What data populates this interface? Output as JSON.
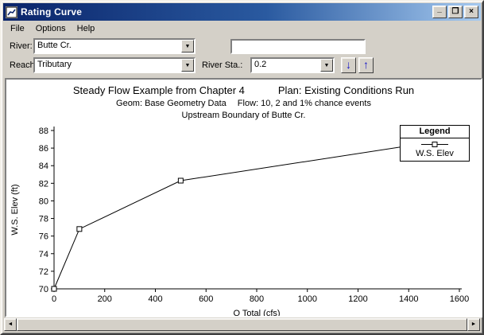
{
  "window": {
    "title": "Rating Curve",
    "minimize_glyph": "_",
    "maximize_glyph": "❐",
    "close_glyph": "×"
  },
  "menu": {
    "items": [
      {
        "label": "File"
      },
      {
        "label": "Options"
      },
      {
        "label": "Help"
      }
    ]
  },
  "controls": {
    "river_label": "River:",
    "river_value": "Butte Cr.",
    "reach_label": "Reach:",
    "reach_value": "Tributary",
    "sta_label": "River Sta.:",
    "sta_value": "0.2",
    "info_value": "",
    "down_arrow_glyph": "↓",
    "up_arrow_glyph": "↑",
    "dropdown_glyph": "▼"
  },
  "chart_data": {
    "type": "line",
    "title": "Steady Flow Example from Chapter 4",
    "plan": "Plan: Existing Conditions Run",
    "geom": "Geom: Base Geometry Data",
    "flow": "Flow: 10, 2 and 1% chance events",
    "boundary": "Upstream Boundary of Butte Cr.",
    "xlabel": "Q Total  (cfs)",
    "ylabel": "W.S. Elev  (ft)",
    "xlim": [
      0,
      1600
    ],
    "ylim": [
      70,
      88
    ],
    "xticks": [
      0,
      200,
      400,
      600,
      800,
      1000,
      1200,
      1400,
      1600
    ],
    "yticks": [
      70,
      72,
      74,
      76,
      78,
      80,
      82,
      84,
      86,
      88
    ],
    "grid": false,
    "legend_position": "upper right",
    "legend_title": "Legend",
    "series": [
      {
        "name": "W.S. Elev",
        "x": [
          0,
          100,
          500,
          1500
        ],
        "y": [
          70,
          76.8,
          82.3,
          86.7
        ],
        "marker": "square",
        "color": "#000000"
      }
    ]
  },
  "scrollbar": {
    "left_glyph": "◄",
    "right_glyph": "►"
  }
}
